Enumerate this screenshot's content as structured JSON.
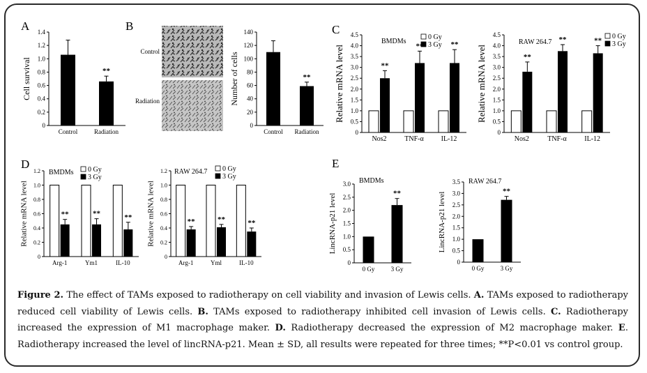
{
  "panels": {
    "A": {
      "letter": "A",
      "ylabel": "Cell survival",
      "ticks": [
        "0",
        "0.2",
        "0.4",
        "0.6",
        "0.8",
        "1.0",
        "1.2",
        "1.4"
      ],
      "categories": [
        "Control",
        "Radiation"
      ],
      "values": [
        1.06,
        0.66
      ],
      "errors": [
        0.22,
        0.08
      ],
      "sig": [
        "",
        "**"
      ]
    },
    "B": {
      "letter": "B",
      "image_labels": [
        "Control",
        "Radiation"
      ],
      "ylabel": "Number of cells",
      "ticks": [
        "0",
        "20",
        "40",
        "60",
        "80",
        "100",
        "120",
        "140"
      ],
      "categories": [
        "Control",
        "Radiation"
      ],
      "values": [
        110,
        59
      ],
      "errors": [
        17,
        6
      ],
      "sig": [
        "",
        "**"
      ]
    },
    "C": {
      "letter": "C"
    },
    "C1": {
      "title": "BMDMs",
      "ylabel": "Relative mRNA level",
      "ticks": [
        "0",
        "0.5",
        "1.0",
        "1.5",
        "2.0",
        "2.5",
        "3.0",
        "3.5",
        "4.0",
        "4.5"
      ],
      "legend": [
        "0 Gy",
        "3 Gy"
      ],
      "categories": [
        "Nos2",
        "TNF-α",
        "IL-12"
      ],
      "series": [
        {
          "name": "0 Gy",
          "values": [
            1.0,
            1.0,
            1.0
          ]
        },
        {
          "name": "3 Gy",
          "values": [
            2.5,
            3.2,
            3.2
          ],
          "errors": [
            0.35,
            0.55,
            0.62
          ]
        }
      ],
      "sig": [
        "**",
        "**",
        "**"
      ]
    },
    "C2": {
      "title": "RAW 264.7",
      "ylabel": "Relative mRNA level",
      "ticks": [
        "0",
        "0.5",
        "1.0",
        "1.5",
        "2.0",
        "2.5",
        "3.0",
        "3.5",
        "4.0",
        "4.5"
      ],
      "legend": [
        "0 Gy",
        "3 Gy"
      ],
      "categories": [
        "Nos2",
        "TNF-α",
        "IL-12"
      ],
      "series": [
        {
          "name": "0 Gy",
          "values": [
            1.0,
            1.0,
            1.0
          ]
        },
        {
          "name": "3 Gy",
          "values": [
            2.8,
            3.75,
            3.65
          ],
          "errors": [
            0.45,
            0.3,
            0.35
          ]
        }
      ],
      "sig": [
        "**",
        "**",
        "**"
      ]
    },
    "D": {
      "letter": "D"
    },
    "D1": {
      "title": "BMDMs",
      "ylabel": "Relative mRNA level",
      "ticks": [
        "0",
        "0.2",
        "0.4",
        "0.6",
        "0.8",
        "1.0",
        "1.2"
      ],
      "legend": [
        "0 Gy",
        "3 Gy"
      ],
      "categories": [
        "Arg-1",
        "Ym1",
        "IL-10"
      ],
      "series": [
        {
          "name": "0 Gy",
          "values": [
            1.0,
            1.0,
            1.0
          ]
        },
        {
          "name": "3 Gy",
          "values": [
            0.45,
            0.45,
            0.38
          ],
          "errors": [
            0.07,
            0.08,
            0.1
          ]
        }
      ],
      "sig": [
        "**",
        "**",
        "**"
      ]
    },
    "D2": {
      "title": "RAW 264.7",
      "ylabel": "Relative mRNA level",
      "ticks": [
        "0",
        "0.2",
        "0.4",
        "0.6",
        "0.8",
        "1.0",
        "1.2"
      ],
      "legend": [
        "0 Gy",
        "3 Gy"
      ],
      "categories": [
        "Arg-1",
        "Yml",
        "IL-10"
      ],
      "series": [
        {
          "name": "0 Gy",
          "values": [
            1.0,
            1.0,
            1.0
          ]
        },
        {
          "name": "3 Gy",
          "values": [
            0.38,
            0.41,
            0.35
          ],
          "errors": [
            0.04,
            0.04,
            0.05
          ]
        }
      ],
      "sig": [
        "**",
        "**",
        "**"
      ]
    },
    "E": {
      "letter": "E"
    },
    "E1": {
      "title": "BMDMs",
      "ylabel": "LincRNA-p21 level",
      "ticks": [
        "0",
        "0.5",
        "1.0",
        "1.5",
        "2.0",
        "2.5",
        "3.0"
      ],
      "categories": [
        "0 Gy",
        "3 Gy"
      ],
      "values": [
        1.0,
        2.2
      ],
      "errors": [
        0,
        0.25
      ],
      "sig": [
        "",
        "**"
      ]
    },
    "E2": {
      "title": "RAW 264.7",
      "ylabel": "LincRNA-p21 level",
      "ticks": [
        "0",
        "0.5",
        "1.0",
        "1.5",
        "2.0",
        "2.5",
        "3.0",
        "3.5"
      ],
      "categories": [
        "0 Gy",
        "3 Gy"
      ],
      "values": [
        1.0,
        2.72
      ],
      "errors": [
        0,
        0.15
      ],
      "sig": [
        "",
        "**"
      ]
    }
  },
  "chart_data": [
    {
      "type": "bar",
      "panel": "A",
      "ylabel": "Cell survival",
      "ylim": [
        0,
        1.4
      ],
      "categories": [
        "Control",
        "Radiation"
      ],
      "values": [
        1.06,
        0.66
      ],
      "errors": [
        0.22,
        0.08
      ]
    },
    {
      "type": "bar",
      "panel": "B",
      "ylabel": "Number of cells",
      "ylim": [
        0,
        140
      ],
      "categories": [
        "Control",
        "Radiation"
      ],
      "values": [
        110,
        59
      ],
      "errors": [
        17,
        6
      ]
    },
    {
      "type": "bar",
      "panel": "C",
      "title": "BMDMs",
      "ylabel": "Relative mRNA level",
      "ylim": [
        0,
        4.5
      ],
      "categories": [
        "Nos2",
        "TNF-α",
        "IL-12"
      ],
      "series": [
        {
          "name": "0 Gy",
          "values": [
            1.0,
            1.0,
            1.0
          ]
        },
        {
          "name": "3 Gy",
          "values": [
            2.5,
            3.2,
            3.2
          ]
        }
      ]
    },
    {
      "type": "bar",
      "panel": "C",
      "title": "RAW 264.7",
      "ylabel": "Relative mRNA level",
      "ylim": [
        0,
        4.5
      ],
      "categories": [
        "Nos2",
        "TNF-α",
        "IL-12"
      ],
      "series": [
        {
          "name": "0 Gy",
          "values": [
            1.0,
            1.0,
            1.0
          ]
        },
        {
          "name": "3 Gy",
          "values": [
            2.8,
            3.75,
            3.65
          ]
        }
      ]
    },
    {
      "type": "bar",
      "panel": "D",
      "title": "BMDMs",
      "ylabel": "Relative mRNA level",
      "ylim": [
        0,
        1.2
      ],
      "categories": [
        "Arg-1",
        "Ym1",
        "IL-10"
      ],
      "series": [
        {
          "name": "0 Gy",
          "values": [
            1.0,
            1.0,
            1.0
          ]
        },
        {
          "name": "3 Gy",
          "values": [
            0.45,
            0.45,
            0.38
          ]
        }
      ]
    },
    {
      "type": "bar",
      "panel": "D",
      "title": "RAW 264.7",
      "ylabel": "Relative mRNA level",
      "ylim": [
        0,
        1.2
      ],
      "categories": [
        "Arg-1",
        "Yml",
        "IL-10"
      ],
      "series": [
        {
          "name": "0 Gy",
          "values": [
            1.0,
            1.0,
            1.0
          ]
        },
        {
          "name": "3 Gy",
          "values": [
            0.38,
            0.41,
            0.35
          ]
        }
      ]
    },
    {
      "type": "bar",
      "panel": "E",
      "title": "BMDMs",
      "ylabel": "LincRNA-p21 level",
      "ylim": [
        0,
        3.0
      ],
      "categories": [
        "0 Gy",
        "3 Gy"
      ],
      "values": [
        1.0,
        2.2
      ]
    },
    {
      "type": "bar",
      "panel": "E",
      "title": "RAW 264.7",
      "ylabel": "LincRNA-p21 level",
      "ylim": [
        0,
        3.5
      ],
      "categories": [
        "0 Gy",
        "3 Gy"
      ],
      "values": [
        1.0,
        2.72
      ]
    }
  ],
  "caption": {
    "label": "Figure 2.",
    "text": " The effect of TAMs exposed to radiotherapy on cell viability and invasion of Lewis cells. ",
    "a_label": "A.",
    "a_text": " TAMs exposed to radiotherapy reduced cell viability of Lewis cells. ",
    "b_label": "B.",
    "b_text": " TAMs exposed to radiotherapy inhibited cell invasion of Lewis cells. ",
    "c_label": "C.",
    "c_text": " Radiotherapy increased the expression of M1 macrophage maker. ",
    "d_label": "D.",
    "d_text": " Radiotherapy decreased the expression of M2 macrophage maker. ",
    "e_label": "E",
    "e_text": ". Radiotherapy increased the level of lincRNA-p21. Mean ± SD, all results were repeated for three times; **P<0.01 vs control group."
  }
}
